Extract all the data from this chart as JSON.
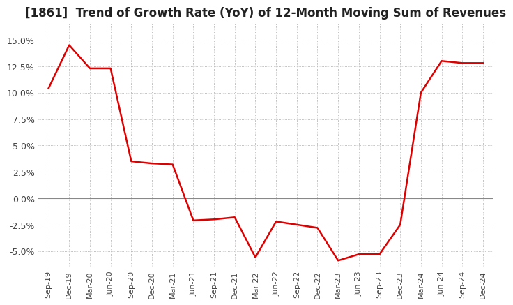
{
  "title": "[1861]  Trend of Growth Rate (YoY) of 12-Month Moving Sum of Revenues",
  "title_fontsize": 12,
  "line_color": "#dd0000",
  "line_width": 1.8,
  "background_color": "#ffffff",
  "grid_color": "#aaaaaa",
  "ylim": [
    -6.5,
    16.5
  ],
  "yticks": [
    -5.0,
    -2.5,
    0.0,
    2.5,
    5.0,
    7.5,
    10.0,
    12.5,
    15.0
  ],
  "x_labels": [
    "Sep-19",
    "Dec-19",
    "Mar-20",
    "Jun-20",
    "Sep-20",
    "Dec-20",
    "Mar-21",
    "Jun-21",
    "Sep-21",
    "Dec-21",
    "Mar-22",
    "Jun-22",
    "Sep-22",
    "Dec-22",
    "Mar-23",
    "Jun-23",
    "Sep-23",
    "Dec-23",
    "Mar-24",
    "Jun-24",
    "Sep-24",
    "Dec-24"
  ],
  "data": [
    [
      "Sep-19",
      10.4
    ],
    [
      "Dec-19",
      14.5
    ],
    [
      "Mar-20",
      12.3
    ],
    [
      "Jun-20",
      12.3
    ],
    [
      "Sep-20",
      3.5
    ],
    [
      "Dec-20",
      3.3
    ],
    [
      "Mar-21",
      3.2
    ],
    [
      "Jun-21",
      -2.1
    ],
    [
      "Sep-21",
      -2.0
    ],
    [
      "Dec-21",
      -1.8
    ],
    [
      "Mar-22",
      -5.6
    ],
    [
      "Jun-22",
      -2.2
    ],
    [
      "Sep-22",
      -2.5
    ],
    [
      "Dec-22",
      -2.8
    ],
    [
      "Mar-23",
      -5.9
    ],
    [
      "Jun-23",
      -5.3
    ],
    [
      "Sep-23",
      -5.3
    ],
    [
      "Dec-23",
      -2.5
    ],
    [
      "Mar-24",
      10.0
    ],
    [
      "Jun-24",
      13.0
    ],
    [
      "Sep-24",
      12.8
    ],
    [
      "Dec-24",
      12.8
    ]
  ]
}
